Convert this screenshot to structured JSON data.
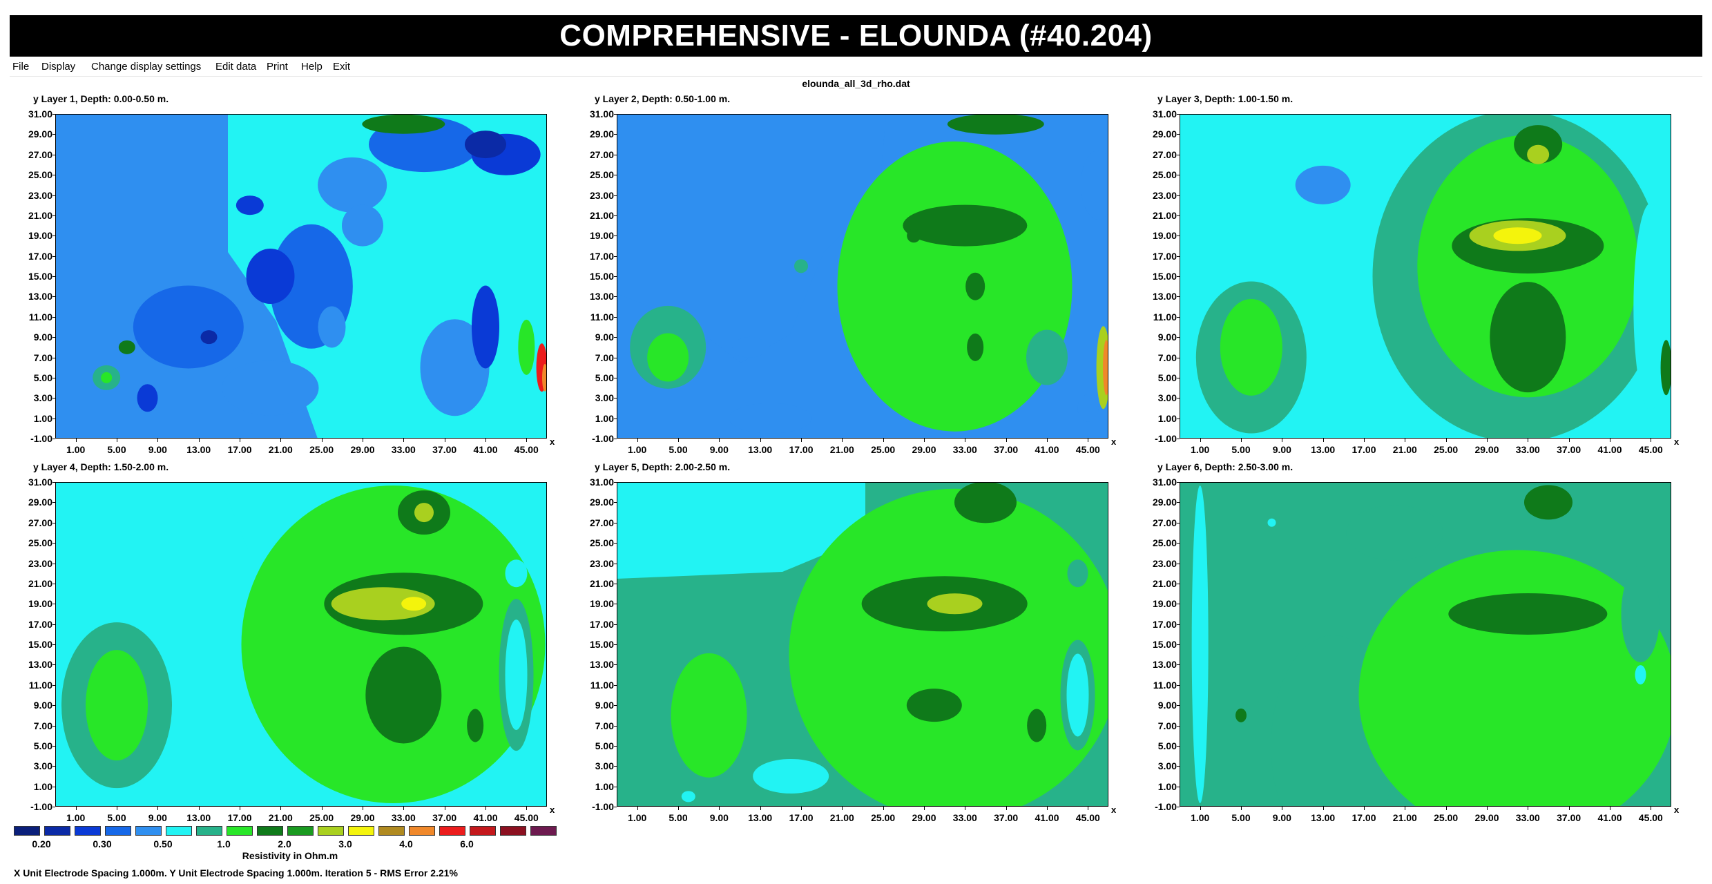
{
  "window": {
    "title": "COMPREHENSIVE - ELOUNDA (#40.204)"
  },
  "menu": [
    {
      "id": "file",
      "label": "File"
    },
    {
      "id": "display",
      "label": "Display"
    },
    {
      "id": "change-display-settings",
      "label": "Change display settings"
    },
    {
      "id": "edit-data",
      "label": "Edit data"
    },
    {
      "id": "print",
      "label": "Print"
    },
    {
      "id": "help",
      "label": "Help"
    },
    {
      "id": "exit",
      "label": "Exit"
    }
  ],
  "file_name": "elounda_all_3d_rho.dat",
  "axes": {
    "y_ticks": [
      "31.00",
      "29.00",
      "27.00",
      "25.00",
      "23.00",
      "21.00",
      "19.00",
      "17.00",
      "15.00",
      "13.00",
      "11.00",
      "9.00",
      "7.00",
      "5.00",
      "3.00",
      "1.00",
      "-1.00"
    ],
    "x_ticks": [
      "1.00",
      "5.00",
      "9.00",
      "13.00",
      "17.00",
      "21.00",
      "25.00",
      "29.00",
      "33.00",
      "37.00",
      "41.00",
      "45.00"
    ],
    "y_label": "y",
    "x_label": "x",
    "x_range": [
      -1,
      47
    ],
    "y_range": [
      -1,
      31
    ]
  },
  "layers": [
    {
      "title": "y Layer 1, Depth: 0.00-0.50 m."
    },
    {
      "title": "y Layer 2, Depth: 0.50-1.00 m."
    },
    {
      "title": "y Layer 3, Depth: 1.00-1.50 m."
    },
    {
      "title": "y Layer 4, Depth: 1.50-2.00 m."
    },
    {
      "title": "y Layer 5, Depth: 2.00-2.50 m."
    },
    {
      "title": "y Layer 6, Depth: 2.50-3.00 m."
    }
  ],
  "legend": {
    "colors": [
      "#0a1f7a",
      "#0b2aa6",
      "#0a3ad6",
      "#1668e8",
      "#2f8ff0",
      "#22f3f3",
      "#27b28a",
      "#28e628",
      "#0f7a1a",
      "#1a9a20",
      "#a9d01f",
      "#f4f40c",
      "#b08a20",
      "#f0882a",
      "#ec1c1c",
      "#c4181c",
      "#8c1020",
      "#6d1a4f"
    ],
    "labels": [
      "0.20",
      "0.30",
      "0.50",
      "1.0",
      "2.0",
      "3.0",
      "4.0",
      "6.0"
    ],
    "caption": "Resistivity in Ohm.m"
  },
  "footer": "X Unit Electrode Spacing 1.000m.  Y Unit Electrode Spacing 1.000m.    Iteration 5 - RMS Error 2.21%"
}
